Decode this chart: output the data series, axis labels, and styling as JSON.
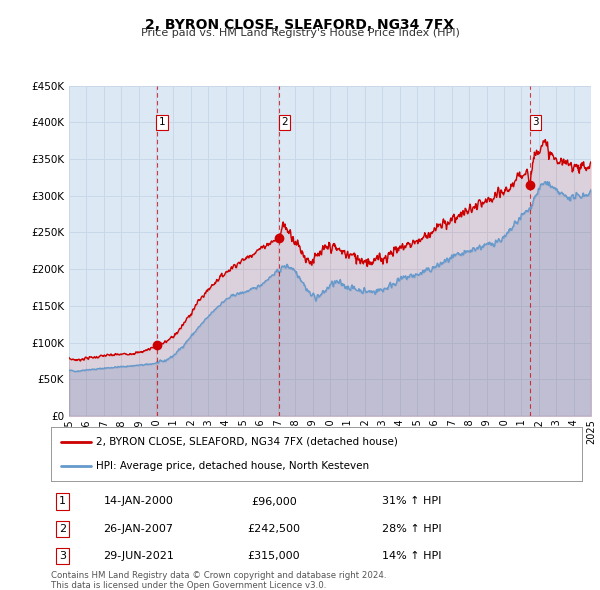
{
  "title": "2, BYRON CLOSE, SLEAFORD, NG34 7FX",
  "subtitle": "Price paid vs. HM Land Registry's House Price Index (HPI)",
  "background_color": "#ffffff",
  "plot_bg_color": "#dce9f5",
  "grid_color": "#c8d8e8",
  "red_line_color": "#cc0000",
  "blue_line_color": "#6699cc",
  "sale_marker_color": "#cc0000",
  "dashed_line_color": "#cc0000",
  "ylim": [
    0,
    450000
  ],
  "yticks": [
    0,
    50000,
    100000,
    150000,
    200000,
    250000,
    300000,
    350000,
    400000,
    450000
  ],
  "ytick_labels": [
    "£0",
    "£50K",
    "£100K",
    "£150K",
    "£200K",
    "£250K",
    "£300K",
    "£350K",
    "£400K",
    "£450K"
  ],
  "xtick_years": [
    1995,
    1996,
    1997,
    1998,
    1999,
    2000,
    2001,
    2002,
    2003,
    2004,
    2005,
    2006,
    2007,
    2008,
    2009,
    2010,
    2011,
    2012,
    2013,
    2014,
    2015,
    2016,
    2017,
    2018,
    2019,
    2020,
    2021,
    2022,
    2023,
    2024,
    2025
  ],
  "sales": [
    {
      "label": "1",
      "date_num": 2000.04,
      "price": 96000,
      "date_str": "14-JAN-2000",
      "price_str": "£96,000",
      "pct": "31%",
      "dir": "↑"
    },
    {
      "label": "2",
      "date_num": 2007.07,
      "price": 242500,
      "date_str": "26-JAN-2007",
      "price_str": "£242,500",
      "pct": "28%",
      "dir": "↑"
    },
    {
      "label": "3",
      "date_num": 2021.49,
      "price": 315000,
      "date_str": "29-JUN-2021",
      "price_str": "£315,000",
      "pct": "14%",
      "dir": "↑"
    }
  ],
  "legend_red_label": "2, BYRON CLOSE, SLEAFORD, NG34 7FX (detached house)",
  "legend_blue_label": "HPI: Average price, detached house, North Kesteven",
  "footer_line1": "Contains HM Land Registry data © Crown copyright and database right 2024.",
  "footer_line2": "This data is licensed under the Open Government Licence v3.0."
}
